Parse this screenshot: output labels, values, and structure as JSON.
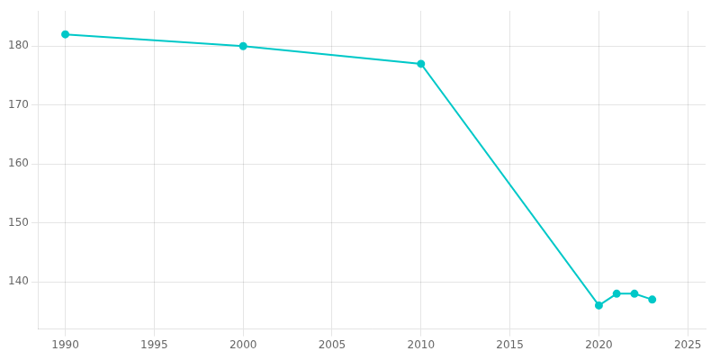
{
  "chart_data": {
    "type": "line",
    "x": [
      1990,
      2000,
      2010,
      2020,
      2021,
      2022,
      2023
    ],
    "values": [
      182,
      180,
      177,
      136,
      138,
      138,
      137
    ],
    "color": "#00C8C8",
    "marker": "circle",
    "xlim": [
      1988.5,
      2026
    ],
    "ylim": [
      132,
      186
    ],
    "xticks": [
      1990,
      1995,
      2000,
      2005,
      2010,
      2015,
      2020,
      2025
    ],
    "yticks": [
      140,
      150,
      160,
      170,
      180
    ],
    "grid": true
  }
}
